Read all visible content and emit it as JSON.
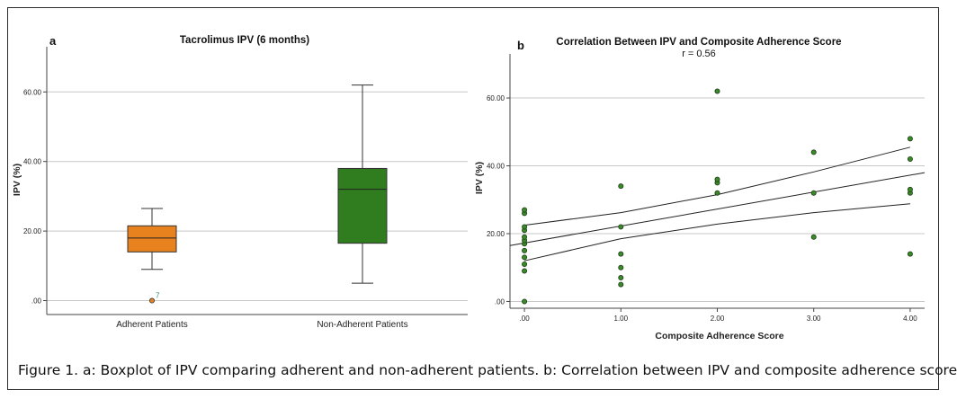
{
  "caption": "Figure 1. a: Boxplot of IPV comparing adherent and non-adherent patients. b: Correlation between IPV and composite adherence score",
  "chart_data": [
    {
      "type": "box",
      "panel_label": "a",
      "title": "Tacrolimus IPV (6 months)",
      "ylabel": "IPV (%)",
      "xlabel": "",
      "ylim": [
        -4,
        73
      ],
      "yticks": [
        0,
        20,
        40,
        60
      ],
      "ytick_labels": [
        ".00",
        "20.00",
        "40.00",
        "60.00"
      ],
      "grid": true,
      "categories": [
        "Adherent Patients",
        "Non-Adherent Patients"
      ],
      "boxes": [
        {
          "category": "Adherent Patients",
          "min": 9,
          "q1": 14,
          "median": 18,
          "q3": 21.5,
          "max": 26.5,
          "color": "#e8821e",
          "outliers": [
            {
              "value": 0,
              "label": "7"
            }
          ]
        },
        {
          "category": "Non-Adherent Patients",
          "min": 5,
          "q1": 16.5,
          "median": 32,
          "q3": 38,
          "max": 62,
          "color": "#2f7d1e",
          "outliers": []
        }
      ]
    },
    {
      "type": "scatter",
      "panel_label": "b",
      "title": "Correlation Between IPV and Composite Adherence Score",
      "subtitle": "r = 0.56",
      "xlabel": "Composite Adherence Score",
      "ylabel": "IPV (%)",
      "xlim": [
        -0.15,
        4.15
      ],
      "ylim": [
        -2,
        73
      ],
      "xticks": [
        0,
        1,
        2,
        3,
        4
      ],
      "xtick_labels": [
        ".00",
        "1.00",
        "2.00",
        "3.00",
        "4.00"
      ],
      "yticks": [
        0,
        20,
        40,
        60
      ],
      "ytick_labels": [
        ".00",
        "20.00",
        "40.00",
        "60.00"
      ],
      "grid": true,
      "point_color": "#3a8a2a",
      "points": [
        [
          0,
          0
        ],
        [
          0,
          9
        ],
        [
          0,
          11
        ],
        [
          0,
          13
        ],
        [
          0,
          15
        ],
        [
          0,
          17
        ],
        [
          0,
          18
        ],
        [
          0,
          19
        ],
        [
          0,
          21
        ],
        [
          0,
          22
        ],
        [
          0,
          26
        ],
        [
          0,
          27
        ],
        [
          1,
          5
        ],
        [
          1,
          7
        ],
        [
          1,
          10
        ],
        [
          1,
          14
        ],
        [
          1,
          22
        ],
        [
          1,
          34
        ],
        [
          2,
          32
        ],
        [
          2,
          35
        ],
        [
          2,
          36
        ],
        [
          2,
          62
        ],
        [
          3,
          19
        ],
        [
          3,
          32
        ],
        [
          3,
          44
        ],
        [
          4,
          14
        ],
        [
          4,
          32
        ],
        [
          4,
          33
        ],
        [
          4,
          42
        ],
        [
          4,
          48
        ]
      ],
      "fit_line": {
        "x": [
          -0.15,
          4.15
        ],
        "y": [
          16.5,
          38
        ]
      },
      "ci_upper": {
        "x": [
          0,
          1,
          2,
          3,
          4
        ],
        "y": [
          22.5,
          26.2,
          31.5,
          38.2,
          45.5
        ]
      },
      "ci_lower": {
        "x": [
          0,
          1,
          2,
          3,
          4
        ],
        "y": [
          12,
          18.5,
          22.8,
          26.2,
          28.8
        ]
      }
    }
  ]
}
